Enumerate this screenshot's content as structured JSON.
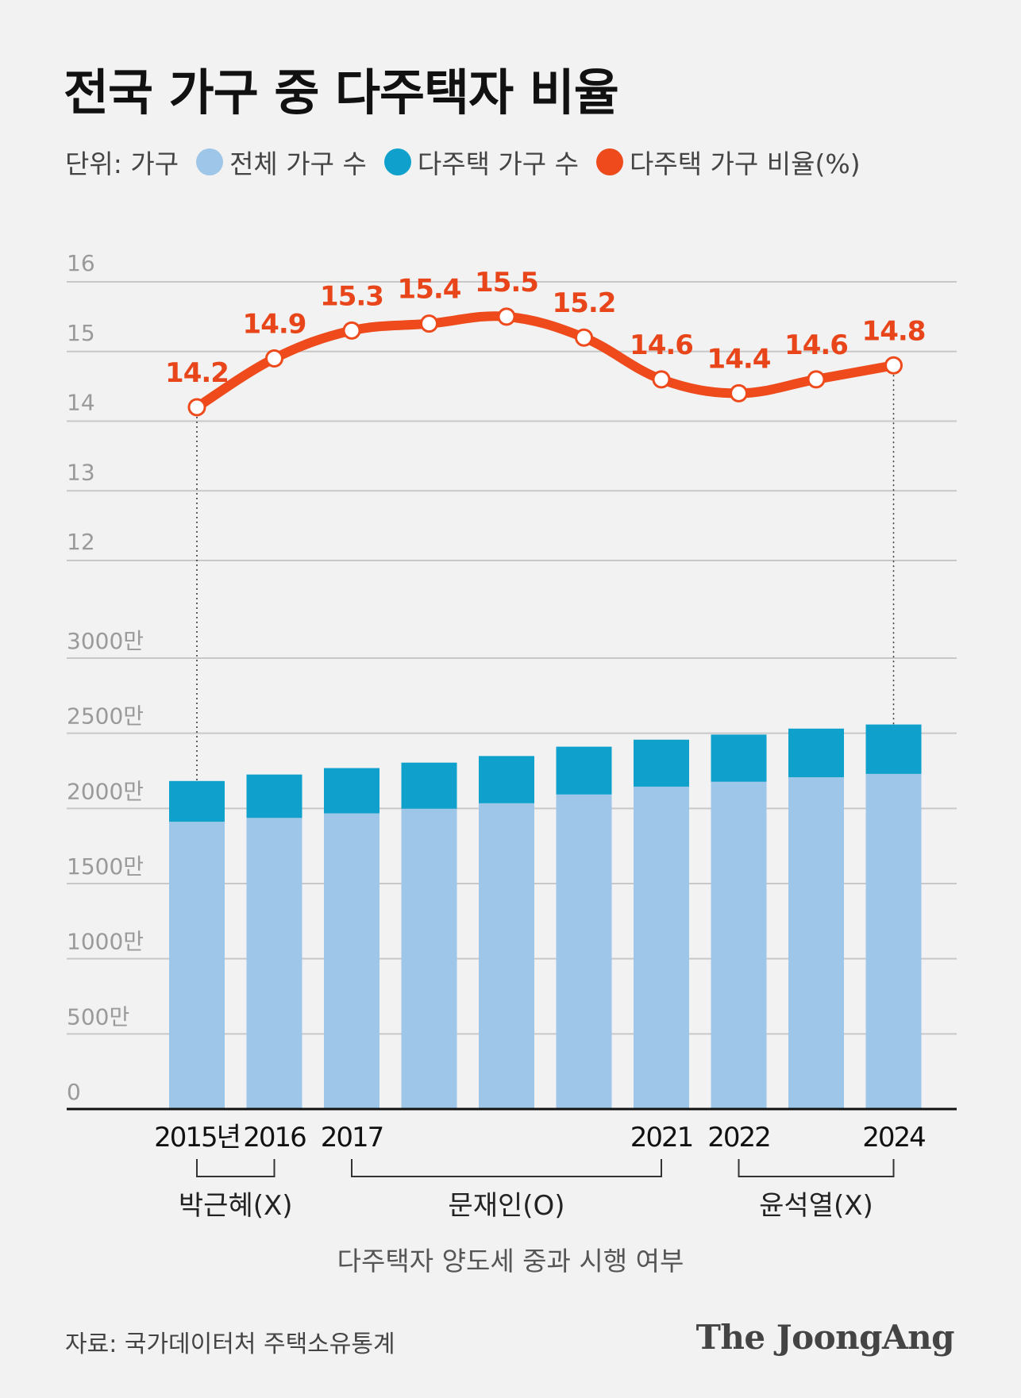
{
  "title": "전국 가구 중 다주택자 비율",
  "legend": {
    "unit": "단위: 가구",
    "total_label": "전체 가구 수",
    "multi_label": "다주택 가구 수",
    "ratio_label": "다주택 가구 비율(%)"
  },
  "colors": {
    "total": "#9ec6e8",
    "multi": "#0fa1cc",
    "ratio": "#ee4a1c",
    "ratio_label": "#e8461a"
  },
  "chart_data": {
    "type": "bar+line",
    "years": [
      "2015",
      "2016",
      "2017",
      "2018",
      "2019",
      "2020",
      "2021",
      "2022",
      "2023",
      "2024"
    ],
    "x_tick_labels": [
      "2015년",
      "2016",
      "2017",
      "",
      "",
      "",
      "2021",
      "2022",
      "",
      "2024"
    ],
    "series": [
      {
        "name": "전체 가구 수",
        "type": "bar",
        "values": [
          19111000,
          19368000,
          19674000,
          19979000,
          20343000,
          20927000,
          21448000,
          21774000,
          22073000,
          22296000
        ]
      },
      {
        "name": "다주택 가구 수",
        "type": "bar",
        "values": [
          2713000,
          2887000,
          3010000,
          3067000,
          3143000,
          3180000,
          3125000,
          3139000,
          3237000,
          3288000
        ]
      },
      {
        "name": "다주택 가구 비율(%)",
        "type": "line",
        "values": [
          14.2,
          14.9,
          15.3,
          15.4,
          15.5,
          15.2,
          14.6,
          14.4,
          14.6,
          14.8
        ]
      }
    ],
    "ratio_axis": {
      "ticks": [
        "16",
        "15",
        "14",
        "13",
        "12"
      ],
      "range": [
        12,
        16
      ]
    },
    "count_axis": {
      "ticks": [
        "3000만",
        "2500만",
        "2000만",
        "1500만",
        "1000만",
        "500만",
        "0"
      ],
      "range": [
        0,
        30000000
      ]
    },
    "periods": [
      {
        "label": "박근혜(X)",
        "from": "2015",
        "to": "2016"
      },
      {
        "label": "문재인(O)",
        "from": "2017",
        "to": "2021"
      },
      {
        "label": "윤석열(X)",
        "from": "2022",
        "to": "2024"
      }
    ],
    "periods_caption": "다주택자 양도세 중과 시행 여부"
  },
  "source": "자료: 국가데이터처 주택소유통계",
  "brand": "The JoongAng"
}
